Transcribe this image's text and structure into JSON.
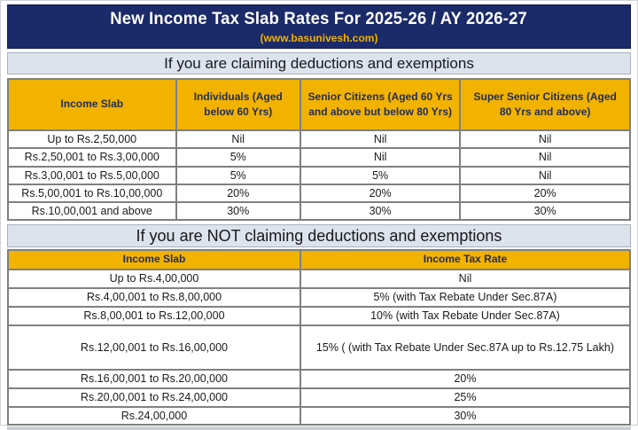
{
  "header": {
    "title": "New Income Tax Slab Rates For 2025-26 / AY 2026-27",
    "subtitle": "(www.basunivesh.com)"
  },
  "colors": {
    "navy": "#1B2A68",
    "gold_header": "#F2B200",
    "gold_text": "#F0B000",
    "section_bar_gray": "#DCE3ED",
    "table_border_gray": "#808080"
  },
  "deductions_table": {
    "section_heading": "If you are claiming deductions and exemptions",
    "columns": [
      "Income Slab",
      "Individuals (Aged below 60 Yrs)",
      "Senior Citizens (Aged 60 Yrs and above but below 80 Yrs)",
      "Super Senior Citizens (Aged 80 Yrs and above)"
    ],
    "rows": [
      [
        "Up to Rs.2,50,000",
        "Nil",
        "Nil",
        "Nil"
      ],
      [
        "Rs.2,50,001 to Rs.3,00,000",
        "5%",
        "Nil",
        "Nil"
      ],
      [
        "Rs.3,00,001 to Rs.5,00,000",
        "5%",
        "5%",
        "Nil"
      ],
      [
        "Rs.5,00,001 to Rs.10,00,000",
        "20%",
        "20%",
        "20%"
      ],
      [
        "Rs.10,00,001 and above",
        "30%",
        "30%",
        "30%"
      ]
    ]
  },
  "no_deductions_table": {
    "section_heading": "If you are NOT claiming deductions and exemptions",
    "columns": [
      "Income Slab",
      "Income Tax Rate"
    ],
    "rows": [
      [
        "Up to Rs.4,00,000",
        "Nil"
      ],
      [
        "Rs.4,00,001 to Rs.8,00,000",
        "5% (with Tax Rebate Under Sec.87A)"
      ],
      [
        "Rs.8,00,001 to Rs.12,00,000",
        "10% (with Tax Rebate Under Sec.87A)"
      ],
      [
        "Rs.12,00,001 to Rs.16,00,000",
        "15% ( (with Tax Rebate Under Sec.87A up to Rs.12.75 Lakh)"
      ],
      [
        "Rs.16,00,001 to Rs.20,00,000",
        "20%"
      ],
      [
        "Rs.20,00,001 to Rs.24,00,000",
        "25%"
      ],
      [
        "Rs.24,00,000",
        "30%"
      ]
    ]
  }
}
